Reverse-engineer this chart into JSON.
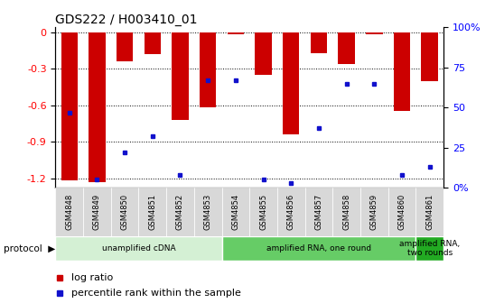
{
  "title": "GDS222 / H003410_01",
  "samples": [
    "GSM4848",
    "GSM4849",
    "GSM4850",
    "GSM4851",
    "GSM4852",
    "GSM4853",
    "GSM4854",
    "GSM4855",
    "GSM4856",
    "GSM4857",
    "GSM4858",
    "GSM4859",
    "GSM4860",
    "GSM4861"
  ],
  "log_ratio": [
    -1.22,
    -1.23,
    -0.24,
    -0.18,
    -0.72,
    -0.62,
    -0.02,
    -0.35,
    -0.84,
    -0.17,
    -0.26,
    -0.02,
    -0.65,
    -0.4
  ],
  "percentile_rank": [
    47,
    5,
    22,
    32,
    8,
    67,
    67,
    5,
    3,
    37,
    65,
    65,
    8,
    13
  ],
  "ylim_left": [
    -1.28,
    0.04
  ],
  "yright_min": 0,
  "yright_max": 100,
  "yticks_left": [
    0,
    -0.3,
    -0.6,
    -0.9,
    -1.2
  ],
  "yticks_right": [
    0,
    25,
    50,
    75,
    100
  ],
  "bar_color": "#cc0000",
  "dot_color": "#1111cc",
  "protocol_groups": [
    {
      "label": "unamplified cDNA",
      "start": 0,
      "end": 5,
      "color": "#d4f0d4"
    },
    {
      "label": "amplified RNA, one round",
      "start": 6,
      "end": 12,
      "color": "#66cc66"
    },
    {
      "label": "amplified RNA,\ntwo rounds",
      "start": 13,
      "end": 13,
      "color": "#22aa22"
    }
  ],
  "bar_width": 0.6,
  "figsize": [
    5.58,
    3.36
  ],
  "dpi": 100
}
